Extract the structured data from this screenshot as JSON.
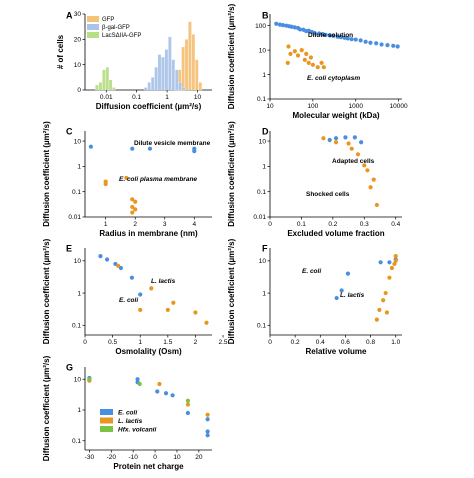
{
  "colors": {
    "blue": "#4a8ee0",
    "orange": "#e8961e",
    "green": "#7cc243",
    "A_gfp": "#f5c27a",
    "A_bgal": "#a9c4e8",
    "A_lac": "#b8de86"
  },
  "chart_data": [
    {
      "panel": "A",
      "type": "bar",
      "ylabel": "# of cells",
      "xlabel": "Diffusion coefficient (µm²/s)",
      "xscale": "log",
      "xlim": [
        0.002,
        30
      ],
      "ylim": [
        0,
        30
      ],
      "xticks": [
        "0.01",
        "0.1",
        "1",
        "10"
      ],
      "yticks": [
        "0",
        "10",
        "20",
        "30"
      ],
      "legend": [
        "GFP",
        "β-gal-GFP",
        "LacSΔIIA-GFP"
      ],
      "series": [
        {
          "name": "GFP",
          "bins": [
            [
              2.0,
              1
            ],
            [
              2.6,
              8
            ],
            [
              3.4,
              17
            ],
            [
              4.4,
              20
            ],
            [
              5.7,
              27
            ],
            [
              7.4,
              22
            ],
            [
              9.6,
              12
            ],
            [
              12.5,
              3
            ]
          ]
        },
        {
          "name": "β-gal-GFP",
          "bins": [
            [
              0.2,
              1
            ],
            [
              0.26,
              3
            ],
            [
              0.34,
              5
            ],
            [
              0.44,
              9
            ],
            [
              0.57,
              14
            ],
            [
              0.74,
              13
            ],
            [
              0.96,
              16
            ],
            [
              1.25,
              21
            ],
            [
              1.62,
              12
            ],
            [
              2.1,
              8
            ],
            [
              2.7,
              3
            ],
            [
              3.5,
              1
            ]
          ]
        },
        {
          "name": "LacSΔIIA-GFP",
          "bins": [
            [
              0.005,
              2
            ],
            [
              0.0065,
              3
            ],
            [
              0.0085,
              8
            ],
            [
              0.011,
              9
            ],
            [
              0.014,
              4
            ],
            [
              0.018,
              1
            ]
          ]
        }
      ]
    },
    {
      "panel": "B",
      "type": "scatter",
      "ylabel": "Diffusion coefficient (µm²/s)",
      "xlabel": "Molecular weight (kDa)",
      "xscale": "log",
      "yscale": "log",
      "xlim": [
        10,
        12000
      ],
      "ylim": [
        0.1,
        300
      ],
      "xticks": [
        "10",
        "100",
        "1000",
        "10000"
      ],
      "yticks": [
        "0.1",
        "1",
        "10",
        "100"
      ],
      "annotations": [
        "Dilute solution",
        "E. coli cytoplasm"
      ],
      "series": [
        {
          "name": "Dilute solution",
          "color": "blue",
          "points": [
            [
              14,
              120
            ],
            [
              17,
              110
            ],
            [
              20,
              105
            ],
            [
              24,
              100
            ],
            [
              28,
              95
            ],
            [
              32,
              90
            ],
            [
              38,
              85
            ],
            [
              45,
              80
            ],
            [
              50,
              70
            ],
            [
              60,
              68
            ],
            [
              70,
              60
            ],
            [
              80,
              62
            ],
            [
              95,
              55
            ],
            [
              110,
              50
            ],
            [
              140,
              48
            ],
            [
              170,
              45
            ],
            [
              200,
              42
            ],
            [
              250,
              40
            ],
            [
              300,
              38
            ],
            [
              380,
              35
            ],
            [
              450,
              34
            ],
            [
              550,
              32
            ],
            [
              650,
              30
            ],
            [
              800,
              28
            ],
            [
              1000,
              27
            ],
            [
              1300,
              25
            ],
            [
              1700,
              22
            ],
            [
              2200,
              20
            ],
            [
              3000,
              19
            ],
            [
              4000,
              17
            ],
            [
              5500,
              16
            ],
            [
              7500,
              15
            ],
            [
              9500,
              14
            ]
          ]
        },
        {
          "name": "E. coli cytoplasm",
          "color": "orange",
          "points": [
            [
              27,
              14
            ],
            [
              30,
              7
            ],
            [
              38,
              9
            ],
            [
              45,
              6
            ],
            [
              55,
              10
            ],
            [
              65,
              4
            ],
            [
              70,
              7
            ],
            [
              80,
              3
            ],
            [
              90,
              5
            ],
            [
              100,
              2.5
            ],
            [
              130,
              2
            ],
            [
              160,
              3
            ],
            [
              180,
              2
            ],
            [
              26,
              3
            ]
          ]
        }
      ]
    },
    {
      "panel": "C",
      "type": "scatter",
      "ylabel": "Diffusion coefficient (µm²/s)",
      "xlabel": "Radius in membrane (nm)",
      "yscale": "log",
      "xlim": [
        0.3,
        4.6
      ],
      "ylim": [
        0.01,
        25
      ],
      "xticks": [
        "1",
        "2",
        "3",
        "4"
      ],
      "yticks": [
        "0.01",
        "0.1",
        "1",
        "10"
      ],
      "annotations": [
        "Dilute vesicle membrane",
        "E. coli plasma membrane"
      ],
      "series": [
        {
          "name": "Dilute vesicle membrane",
          "color": "blue",
          "points": [
            [
              0.5,
              6
            ],
            [
              1.9,
              5
            ],
            [
              2.5,
              5
            ],
            [
              4.0,
              5
            ],
            [
              4.0,
              4
            ]
          ]
        },
        {
          "name": "E. coli plasma membrane",
          "color": "orange",
          "points": [
            [
              1.0,
              0.25
            ],
            [
              1.0,
              0.2
            ],
            [
              1.7,
              0.35
            ],
            [
              1.9,
              0.05
            ],
            [
              2.0,
              0.04
            ],
            [
              1.9,
              0.025
            ],
            [
              2.0,
              0.02
            ],
            [
              1.9,
              0.015
            ]
          ]
        }
      ]
    },
    {
      "panel": "D",
      "type": "scatter",
      "ylabel": "Diffusion coefficient (µm²/s)",
      "xlabel": "Excluded volume fraction",
      "yscale": "log",
      "xlim": [
        0,
        0.42
      ],
      "ylim": [
        0.01,
        25
      ],
      "xticks": [
        "0",
        "0.1",
        "0.2",
        "0.3",
        "0.4"
      ],
      "yticks": [
        "0.01",
        "0.1",
        "1",
        "10"
      ],
      "annotations": [
        "Adapted cells",
        "Shocked cells"
      ],
      "series": [
        {
          "name": "Adapted cells",
          "color": "blue",
          "points": [
            [
              0.19,
              11
            ],
            [
              0.21,
              13
            ],
            [
              0.24,
              14
            ],
            [
              0.27,
              14
            ],
            [
              0.29,
              9
            ]
          ]
        },
        {
          "name": "Shocked cells",
          "color": "orange",
          "points": [
            [
              0.17,
              13
            ],
            [
              0.21,
              9
            ],
            [
              0.25,
              8
            ],
            [
              0.26,
              5
            ],
            [
              0.28,
              3
            ],
            [
              0.3,
              1.1
            ],
            [
              0.31,
              0.7
            ],
            [
              0.33,
              0.3
            ],
            [
              0.32,
              0.15
            ],
            [
              0.34,
              0.03
            ]
          ]
        }
      ]
    },
    {
      "panel": "E",
      "type": "scatter",
      "ylabel": "Diffusion coefficient (µm²/s)",
      "xlabel": "Osmolality (Osm)",
      "yscale": "log",
      "xlim": [
        0,
        2.3
      ],
      "ylim": [
        0.05,
        25
      ],
      "xticks": [
        "0",
        "0.5",
        "1",
        "1.5",
        "2",
        "2.5"
      ],
      "yticks": [
        "0.1",
        "1",
        "10"
      ],
      "annotations": [
        "L. lactis",
        "E. coli"
      ],
      "series": [
        {
          "name": "E. coli",
          "color": "blue",
          "points": [
            [
              0.28,
              14
            ],
            [
              0.4,
              11
            ],
            [
              0.55,
              8
            ],
            [
              0.65,
              6
            ],
            [
              0.85,
              3
            ],
            [
              1.0,
              0.9
            ]
          ]
        },
        {
          "name": "L. lactis",
          "color": "orange",
          "points": [
            [
              0.6,
              7
            ],
            [
              1.2,
              1.4
            ],
            [
              1.6,
              0.5
            ],
            [
              1.0,
              0.3
            ],
            [
              1.5,
              0.3
            ],
            [
              2.0,
              0.25
            ],
            [
              2.2,
              0.12
            ]
          ]
        }
      ]
    },
    {
      "panel": "F",
      "type": "scatter",
      "ylabel": "Diffusion coefficient (µm²/s)",
      "xlabel": "Relative volume",
      "yscale": "log",
      "xlim": [
        0,
        1.05
      ],
      "ylim": [
        0.05,
        25
      ],
      "xticks": [
        "0",
        "0.2",
        "0.4",
        "0.6",
        "0.8",
        "1.0"
      ],
      "yticks": [
        "0.1",
        "1",
        "10"
      ],
      "annotations": [
        "E. coli",
        "L. lactis"
      ],
      "series": [
        {
          "name": "E. coli",
          "color": "blue",
          "points": [
            [
              0.53,
              0.7
            ],
            [
              0.57,
              1.2
            ],
            [
              0.62,
              4
            ],
            [
              0.88,
              9
            ],
            [
              0.95,
              9
            ],
            [
              1.0,
              11
            ]
          ]
        },
        {
          "name": "L. lactis",
          "color": "orange",
          "points": [
            [
              0.85,
              0.15
            ],
            [
              0.87,
              0.3
            ],
            [
              0.9,
              0.6
            ],
            [
              0.92,
              1.0
            ],
            [
              0.93,
              0.25
            ],
            [
              0.95,
              3
            ],
            [
              0.97,
              6
            ],
            [
              0.99,
              8
            ],
            [
              1.0,
              14
            ],
            [
              1.0,
              10
            ]
          ]
        }
      ]
    },
    {
      "panel": "G",
      "type": "scatter",
      "ylabel": "Diffusion coefficient (µm²/s)",
      "xlabel": "Protein net charge",
      "yscale": "log",
      "xlim": [
        -32,
        26
      ],
      "ylim": [
        0.05,
        25
      ],
      "xticks": [
        "-30",
        "-20",
        "-10",
        "0",
        "10",
        "20"
      ],
      "yticks": [
        "0.1",
        "1",
        "10"
      ],
      "legend": [
        "E. coli",
        "L. lactis",
        "Hfx. volcanii"
      ],
      "series": [
        {
          "name": "E. coli",
          "color": "blue",
          "points": [
            [
              -30,
              11
            ],
            [
              -8,
              10
            ],
            [
              -8,
              8
            ],
            [
              1,
              4
            ],
            [
              5,
              3.5
            ],
            [
              8,
              3
            ],
            [
              15,
              0.8
            ],
            [
              24,
              0.5
            ],
            [
              24,
              0.2
            ],
            [
              24,
              0.15
            ]
          ]
        },
        {
          "name": "L. lactis",
          "color": "orange",
          "points": [
            [
              -30,
              9
            ],
            [
              2,
              7
            ],
            [
              15,
              1.5
            ],
            [
              24,
              0.7
            ]
          ]
        },
        {
          "name": "Hfx. volcanii",
          "color": "green",
          "points": [
            [
              -30,
              10
            ],
            [
              -7,
              7
            ],
            [
              15,
              2
            ]
          ]
        }
      ]
    }
  ]
}
